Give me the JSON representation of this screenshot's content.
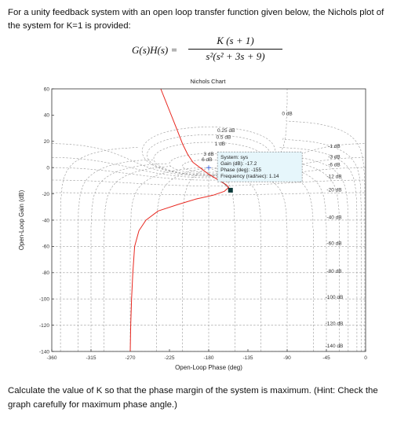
{
  "question": {
    "intro": "For a unity feedback system with an open loop transfer function given below, the Nichols plot of the system for K=1 is provided:",
    "tf_lhs": "G(s)H(s) =",
    "tf_num": "K (s + 1)",
    "tf_den": "s²(s² + 3s + 9)",
    "task": "Calculate the value of K so that the phase margin of the system is maximum. (Hint: Check the graph carefully for maximum phase angle.)"
  },
  "chart_data": {
    "type": "line",
    "title": "Nichols Chart",
    "xlabel": "Open-Loop Phase (deg)",
    "ylabel": "Open-Loop Gain (dB)",
    "xlim": [
      -360,
      0
    ],
    "ylim": [
      -140,
      60
    ],
    "xticks": [
      -360,
      -315,
      -270,
      -225,
      -180,
      -135,
      -90,
      -45,
      0
    ],
    "yticks": [
      -140,
      -120,
      -100,
      -80,
      -60,
      -40,
      -20,
      0,
      20,
      40,
      60
    ],
    "grid": true,
    "series": [
      {
        "color": "#e8271f",
        "points": [
          [
            -235,
            60
          ],
          [
            -226,
            45
          ],
          [
            -217,
            30
          ],
          [
            -210,
            18
          ],
          [
            -204,
            10
          ],
          [
            -198,
            4
          ],
          [
            -190,
            0
          ],
          [
            -180,
            -5
          ],
          [
            -170,
            -9
          ],
          [
            -160,
            -13
          ],
          [
            -157,
            -15
          ],
          [
            -162,
            -18
          ],
          [
            -175,
            -21
          ],
          [
            -195,
            -24
          ],
          [
            -215,
            -28
          ],
          [
            -238,
            -33
          ],
          [
            -252,
            -40
          ],
          [
            -260,
            -48
          ],
          [
            -265,
            -60
          ],
          [
            -267,
            -80
          ],
          [
            -268.5,
            -100
          ],
          [
            -269.5,
            -120
          ],
          [
            -270,
            -140
          ]
        ]
      }
    ],
    "grid_labels": [
      "0 dB",
      "0.25 dB",
      "0.5 dB",
      "1 dB",
      "3 dB",
      "6 dB",
      "-1 dB",
      "-3 dB",
      "-6 dB",
      "-12 dB",
      "-20 dB",
      "-40 dB",
      "-60 dB",
      "-80 dB",
      "-100 dB",
      "-120 dB",
      "-140 dB"
    ],
    "datatip": {
      "marker": [
        -155,
        -17.2
      ],
      "lines": [
        "System: sys",
        "Gain (dB): -17.2",
        "Phase (deg): -155",
        "Frequency (rad/sec): 1.14"
      ]
    },
    "plus_marker": [
      -180,
      0
    ]
  }
}
